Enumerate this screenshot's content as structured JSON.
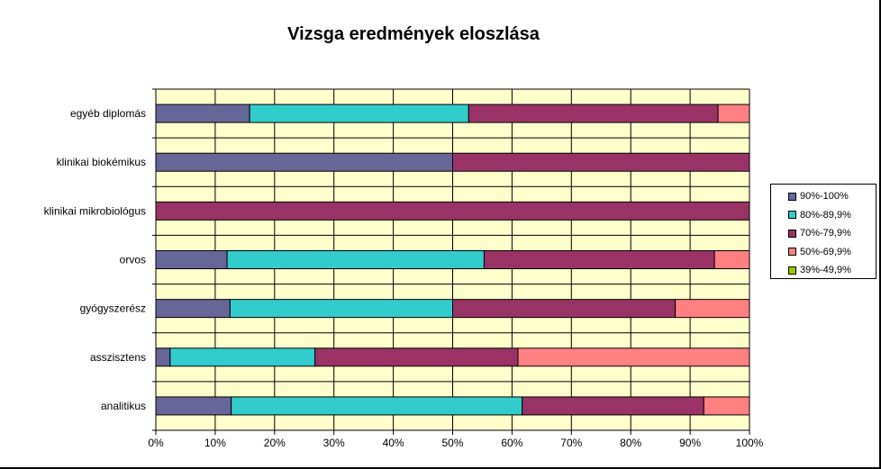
{
  "chart_data": {
    "type": "bar",
    "orientation": "horizontal",
    "stacked": "percent",
    "title": "Vizsga eredmények eloszlása",
    "xlabel": "",
    "ylabel": "",
    "xlim": [
      0,
      100
    ],
    "x_ticks": [
      "0%",
      "10%",
      "20%",
      "30%",
      "40%",
      "50%",
      "60%",
      "70%",
      "80%",
      "90%",
      "100%"
    ],
    "grid": true,
    "legend_position": "right",
    "plot_background": "#ffffcc",
    "categories": [
      "egyéb diplomás",
      "klinikai biokémikus",
      "klinikai mikrobiológus",
      "orvos",
      "gyógyszerész",
      "asszisztens",
      "analitikus"
    ],
    "series": [
      {
        "name": "90%-100%",
        "color": "#666699",
        "values": [
          15.8,
          50,
          0,
          12,
          12.5,
          2.4,
          12.7
        ]
      },
      {
        "name": "80%-89,9%",
        "color": "#33cccc",
        "values": [
          36.9,
          0,
          0,
          43.3,
          37.5,
          24.4,
          49
        ]
      },
      {
        "name": "70%-79,9%",
        "color": "#993366",
        "values": [
          42,
          50,
          100,
          38.8,
          37.5,
          34.2,
          30.6
        ]
      },
      {
        "name": "50%-69,9%",
        "color": "#ff8080",
        "values": [
          5.3,
          0,
          0,
          5.9,
          12.5,
          39,
          7.7
        ]
      },
      {
        "name": "39%-49,9%",
        "color": "#99cc00",
        "values": [
          0,
          0,
          0,
          0,
          0,
          0,
          0
        ]
      }
    ]
  }
}
